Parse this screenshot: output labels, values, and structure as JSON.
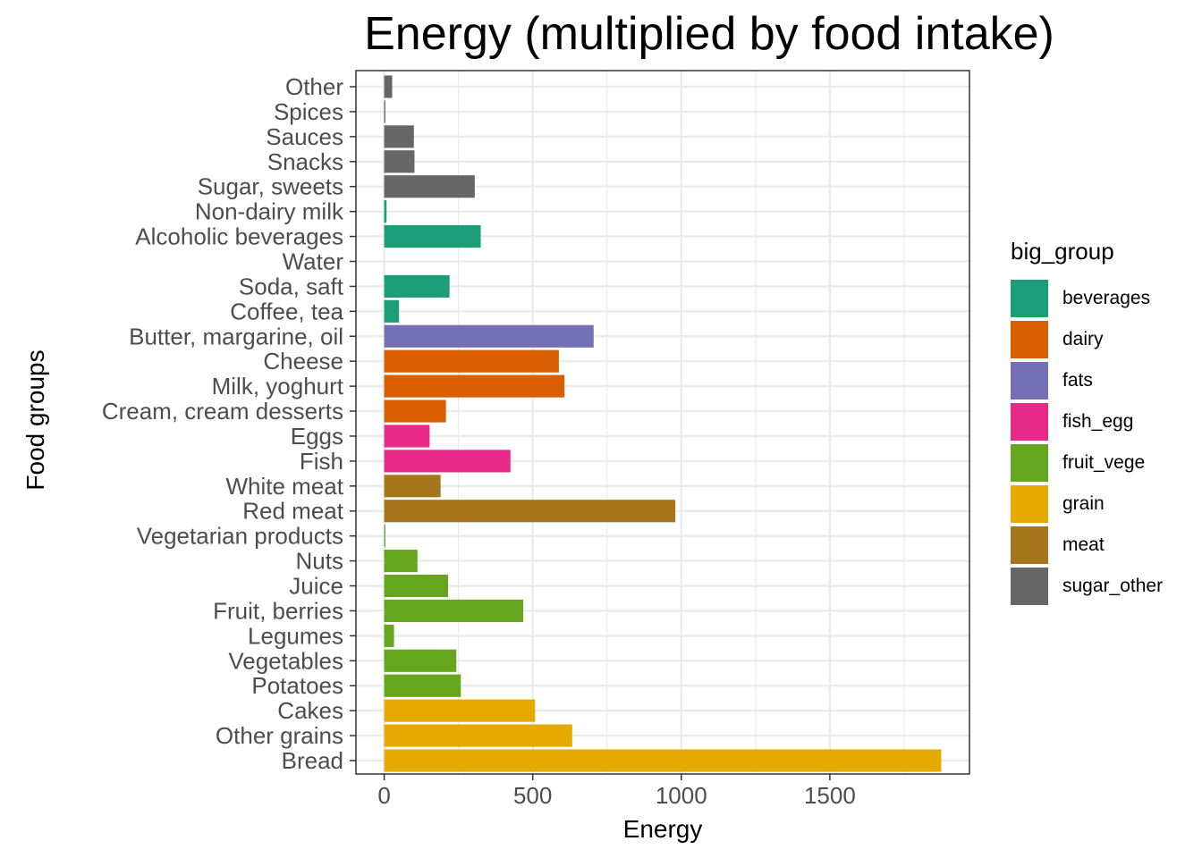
{
  "chart_data": {
    "type": "bar",
    "orientation": "horizontal",
    "title": "Energy (multiplied by food intake)",
    "xlabel": "Energy",
    "ylabel": "Food groups",
    "xlim": [
      -95,
      1970
    ],
    "xticks": [
      0,
      500,
      1000,
      1500
    ],
    "xtick_labels": [
      "0",
      "500",
      "1000",
      "1500"
    ],
    "grid": true,
    "legend_position": "right",
    "legend_title": "big_group",
    "groups": [
      {
        "name": "beverages",
        "color": "#1B9E77"
      },
      {
        "name": "dairy",
        "color": "#D95F02"
      },
      {
        "name": "fats",
        "color": "#7570B3"
      },
      {
        "name": "fish_egg",
        "color": "#E7298A"
      },
      {
        "name": "fruit_vege",
        "color": "#66A61E"
      },
      {
        "name": "grain",
        "color": "#E6AB02"
      },
      {
        "name": "meat",
        "color": "#A6761D"
      },
      {
        "name": "sugar_other",
        "color": "#666666"
      }
    ],
    "categories": [
      "Other",
      "Spices",
      "Sauces",
      "Snacks",
      "Sugar, sweets",
      "Non-dairy milk",
      "Alcoholic beverages",
      "Water",
      "Soda, saft",
      "Coffee, tea",
      "Butter, margarine, oil",
      "Cheese",
      "Milk, yoghurt",
      "Cream, cream desserts",
      "Eggs",
      "Fish",
      "White meat",
      "Red meat",
      "Vegetarian products",
      "Nuts",
      "Juice",
      "Fruit, berries",
      "Legumes",
      "Vegetables",
      "Potatoes",
      "Cakes",
      "Other grains",
      "Bread"
    ],
    "values": [
      27,
      4,
      100,
      102,
      305,
      8,
      325,
      0,
      220,
      50,
      705,
      588,
      607,
      208,
      153,
      425,
      190,
      980,
      4,
      112,
      215,
      468,
      33,
      243,
      258,
      508,
      633,
      1875
    ],
    "big_group": [
      "sugar_other",
      "sugar_other",
      "sugar_other",
      "sugar_other",
      "sugar_other",
      "beverages",
      "beverages",
      "beverages",
      "beverages",
      "beverages",
      "fats",
      "dairy",
      "dairy",
      "dairy",
      "fish_egg",
      "fish_egg",
      "meat",
      "meat",
      "fruit_vege",
      "fruit_vege",
      "fruit_vege",
      "fruit_vege",
      "fruit_vege",
      "fruit_vege",
      "fruit_vege",
      "grain",
      "grain",
      "grain"
    ]
  }
}
